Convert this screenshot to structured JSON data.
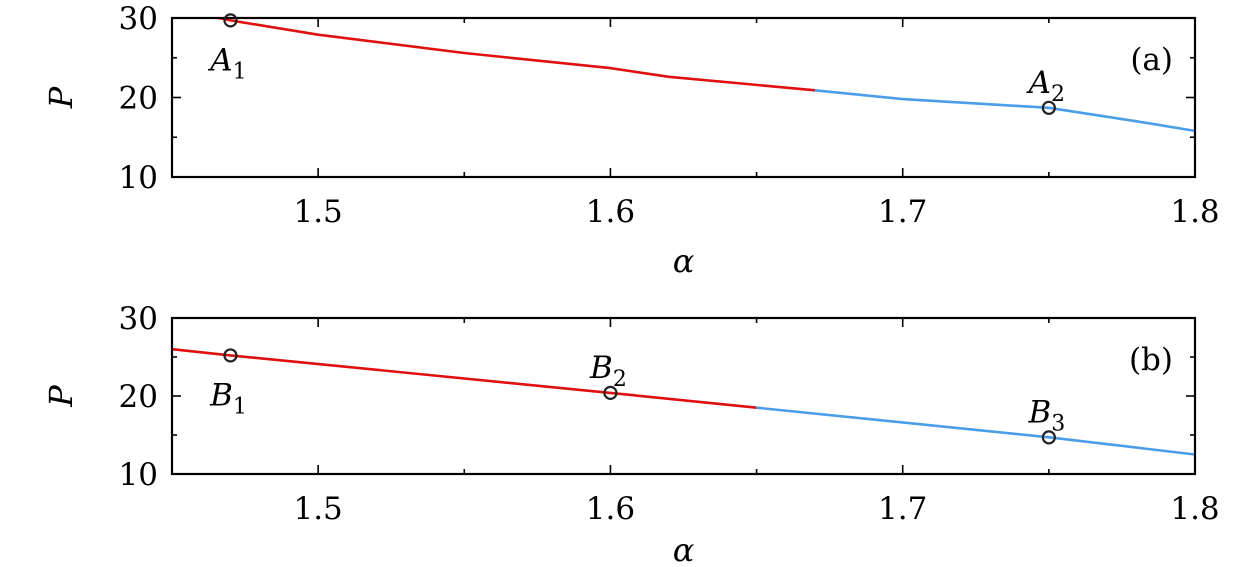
{
  "chart_data": [
    {
      "type": "line",
      "panel_label": "(a)",
      "xlabel": "α",
      "ylabel": "P",
      "xlim": [
        1.45,
        1.8
      ],
      "ylim": [
        10,
        30
      ],
      "xticks": [
        1.5,
        1.6,
        1.7,
        1.8
      ],
      "xtick_labels": [
        "1.5",
        "1.6",
        "1.7",
        "1.8"
      ],
      "yticks": [
        10,
        20,
        30
      ],
      "ytick_labels": [
        "10",
        "20",
        "30"
      ],
      "grid": false,
      "series": [
        {
          "color": "#e01010",
          "x": [
            1.45,
            1.47,
            1.5,
            1.55,
            1.6,
            1.62,
            1.67
          ],
          "y": [
            31.2,
            29.7,
            27.9,
            25.6,
            23.7,
            22.6,
            20.9
          ]
        },
        {
          "color": "#4a9ee8",
          "x": [
            1.67,
            1.7,
            1.75,
            1.78,
            1.8
          ],
          "y": [
            20.9,
            19.8,
            18.7,
            17.0,
            15.8
          ]
        }
      ],
      "points": [
        {
          "label": "A",
          "sub": "1",
          "x": 1.47,
          "y": 29.7,
          "label_pos": "below"
        },
        {
          "label": "A",
          "sub": "2",
          "x": 1.75,
          "y": 18.7,
          "label_pos": "above"
        }
      ]
    },
    {
      "type": "line",
      "panel_label": "(b)",
      "xlabel": "α",
      "ylabel": "P",
      "xlim": [
        1.45,
        1.8
      ],
      "ylim": [
        10,
        30
      ],
      "xticks": [
        1.5,
        1.6,
        1.7,
        1.8
      ],
      "xtick_labels": [
        "1.5",
        "1.6",
        "1.7",
        "1.8"
      ],
      "yticks": [
        10,
        20,
        30
      ],
      "ytick_labels": [
        "10",
        "20",
        "30"
      ],
      "grid": false,
      "series": [
        {
          "color": "#e01010",
          "x": [
            1.45,
            1.47,
            1.6,
            1.65
          ],
          "y": [
            26.0,
            25.2,
            20.4,
            18.5
          ]
        },
        {
          "color": "#4a9ee8",
          "x": [
            1.65,
            1.75,
            1.8
          ],
          "y": [
            18.5,
            14.7,
            12.5
          ]
        }
      ],
      "points": [
        {
          "label": "B",
          "sub": "1",
          "x": 1.47,
          "y": 25.2,
          "label_pos": "below"
        },
        {
          "label": "B",
          "sub": "2",
          "x": 1.6,
          "y": 20.4,
          "label_pos": "above"
        },
        {
          "label": "B",
          "sub": "3",
          "x": 1.75,
          "y": 14.7,
          "label_pos": "above"
        }
      ]
    }
  ]
}
